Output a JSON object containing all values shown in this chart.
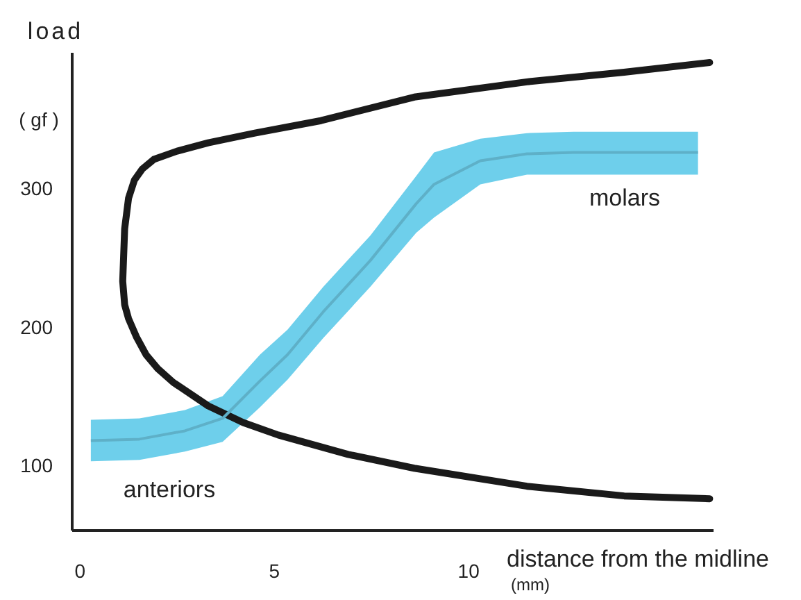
{
  "chart_data": {
    "type": "line",
    "xlabel": "distance from the midline\n(mm)",
    "ylabel": "load\n( gf )",
    "xlim": [
      -0.2,
      16.3
    ],
    "xticks": [
      0,
      5,
      10
    ],
    "ylim": [
      53,
      398
    ],
    "yticks": [
      100,
      200,
      300
    ],
    "series": [
      {
        "color": "#1a1a1a",
        "x": [
          16.2,
          14,
          11.5,
          8.6,
          6.2,
          4.5,
          3.3,
          2.5,
          1.9,
          1.6,
          1.4,
          1.25,
          1.15,
          1.1,
          1.15,
          1.25,
          1.45,
          1.7,
          2,
          2.4,
          3.3,
          4.2,
          5.1,
          6.9,
          8.6,
          11.5,
          14,
          16.2
        ],
        "values": [
          391,
          384,
          377,
          366,
          349,
          340,
          333,
          327,
          321,
          314,
          306,
          293,
          271,
          233,
          216,
          206,
          193,
          180,
          170,
          160,
          143,
          131,
          122,
          108,
          98,
          85,
          78,
          76
        ]
      },
      {
        "color": "#6ecfeb",
        "x": [
          0.28,
          1.53,
          2.7,
          3.67,
          4.63,
          5.34,
          6.26,
          7.47,
          8.65,
          9.11,
          10.3,
          11.5,
          12.7,
          15.9
        ],
        "values": [
          118,
          119,
          125,
          134,
          161,
          180,
          211,
          248,
          289,
          303,
          320,
          325,
          326,
          326
        ],
        "lower": [
          103,
          104,
          110,
          117,
          142,
          162,
          192,
          229,
          268,
          279,
          303,
          310,
          310,
          310
        ],
        "upper": [
          133,
          134,
          140,
          150,
          180,
          198,
          229,
          266,
          309,
          326,
          336,
          340,
          341,
          341
        ]
      }
    ],
    "annotations": [
      "anteriors",
      "molars"
    ]
  }
}
